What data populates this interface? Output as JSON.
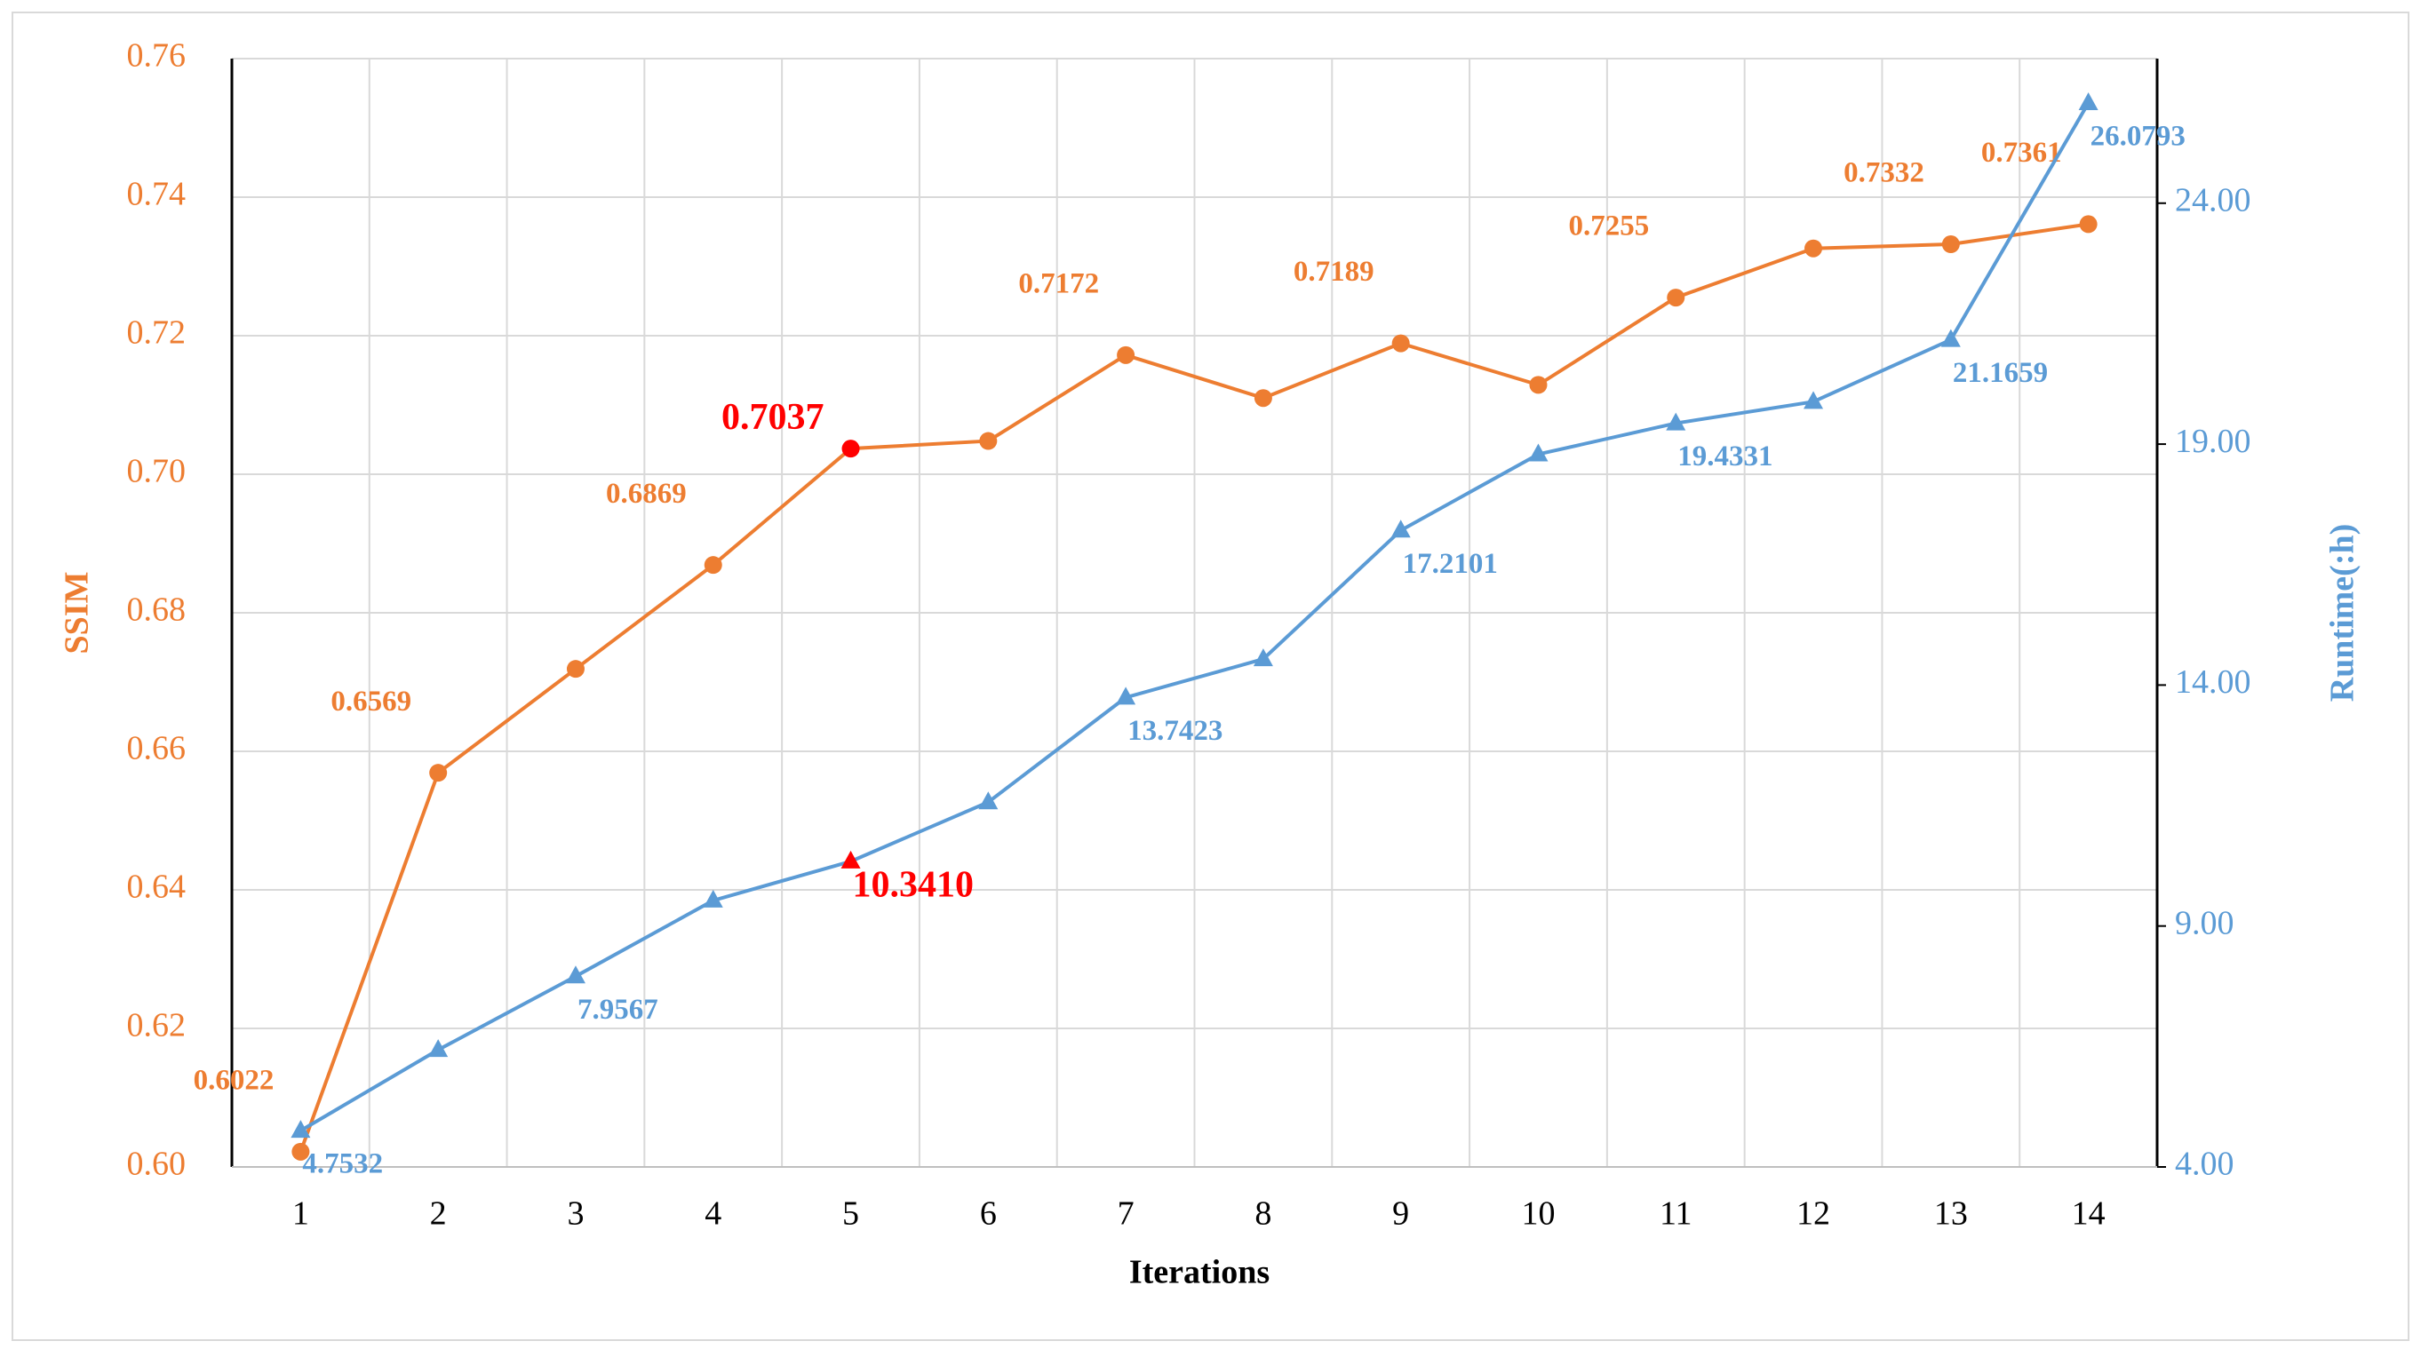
{
  "chart_data": {
    "type": "line",
    "x_label": "Iterations",
    "y_label": "SSIM",
    "y2_label": "Runtime(:h)",
    "categories": [
      "1",
      "2",
      "3",
      "4",
      "5",
      "6",
      "7",
      "8",
      "9",
      "10",
      "11",
      "12",
      "13",
      "14"
    ],
    "series": [
      {
        "name": "SSIM",
        "color": "#ed7d31",
        "marker": "circle",
        "values": [
          0.6022,
          0.6569,
          0.6719,
          0.6869,
          0.7037,
          0.7048,
          0.7172,
          0.711,
          0.7189,
          0.7129,
          0.7255,
          0.7326,
          0.7332,
          0.7361
        ],
        "value_labels": [
          "0.6022",
          "0.6569",
          null,
          "0.6869",
          "0.7037",
          null,
          "0.7172",
          null,
          "0.7189",
          null,
          "0.7255",
          null,
          "0.7332",
          "0.7361"
        ]
      },
      {
        "name": "Runtime",
        "color": "#5b9bd5",
        "marker": "triangle",
        "axis": "y2",
        "values": [
          4.7532,
          6.43,
          7.9567,
          9.53,
          10.341,
          11.57,
          13.7423,
          14.54,
          17.2101,
          18.79,
          19.4331,
          19.88,
          21.1659,
          26.0793
        ],
        "value_labels": [
          "4.7532",
          null,
          "7.9567",
          null,
          "10.3410",
          null,
          "13.7423",
          null,
          "17.2101",
          null,
          "19.4331",
          null,
          "21.1659",
          "26.0793"
        ]
      }
    ],
    "highlight": {
      "index": 4,
      "color": "#ff0000"
    },
    "ylim": [
      0.6,
      0.76
    ],
    "yticks": [
      {
        "value": 0.6,
        "label": "0.60"
      },
      {
        "value": 0.62,
        "label": "0.62"
      },
      {
        "value": 0.64,
        "label": "0.64"
      },
      {
        "value": 0.66,
        "label": "0.66"
      },
      {
        "value": 0.68,
        "label": "0.68"
      },
      {
        "value": 0.7,
        "label": "0.70"
      },
      {
        "value": 0.72,
        "label": "0.72"
      },
      {
        "value": 0.74,
        "label": "0.74"
      },
      {
        "value": 0.76,
        "label": "0.76"
      }
    ],
    "y2lim": [
      4,
      27
    ],
    "y2ticks": [
      {
        "value": 4,
        "label": "4.00"
      },
      {
        "value": 9,
        "label": "9.00"
      },
      {
        "value": 14,
        "label": "14.00"
      },
      {
        "value": 19,
        "label": "19.00"
      },
      {
        "value": 24,
        "label": "24.00"
      }
    ],
    "grid": true
  }
}
